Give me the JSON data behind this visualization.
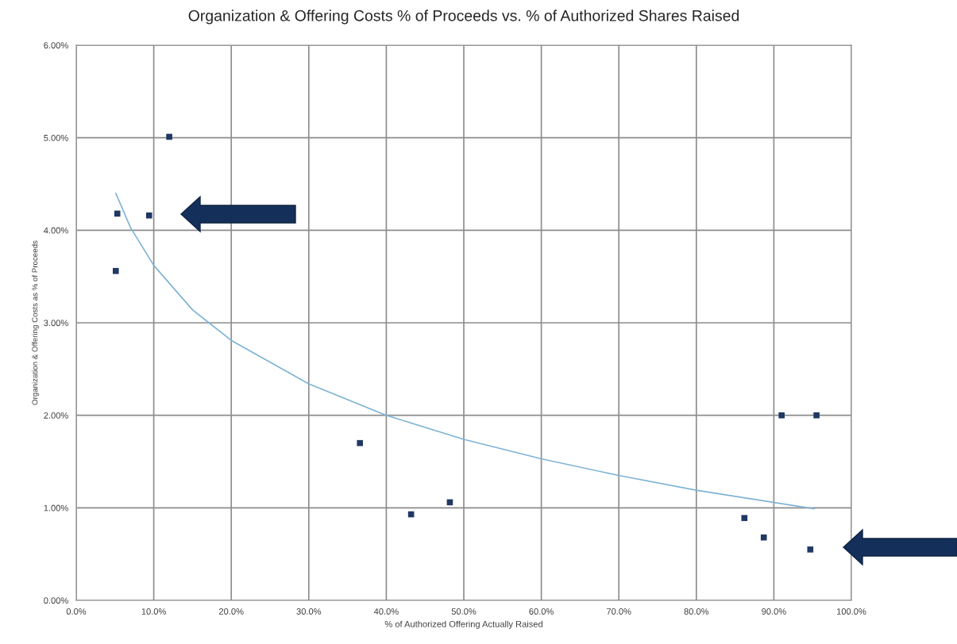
{
  "chart_data": {
    "type": "scatter",
    "title": "Organization & Offering Costs % of Proceeds vs. % of Authorized Shares Raised",
    "xlabel": "% of Authorized Offering Actually Raised",
    "ylabel": "Organization & Offering Costs as % of Proceeds",
    "series": [
      {
        "color": "#1f3864",
        "marker": "square",
        "x": [
          5.3,
          5.1,
          9.4,
          12.0,
          36.6,
          43.2,
          48.2,
          86.2,
          88.7,
          91.0,
          95.5,
          94.7
        ],
        "values": [
          4.18,
          3.56,
          4.16,
          5.01,
          1.7,
          0.93,
          1.06,
          0.89,
          0.68,
          2.0,
          2.0,
          0.55
        ]
      },
      {
        "type": "line",
        "color": "#7fb3d5",
        "line_style": "solid",
        "marker": "none",
        "x": [
          5.1,
          7,
          10,
          15,
          20,
          30,
          40,
          50,
          60,
          70,
          80,
          95.2
        ],
        "values": [
          4.4,
          4.03,
          3.62,
          3.14,
          2.81,
          2.34,
          2.0,
          1.74,
          1.53,
          1.35,
          1.19,
          0.99
        ]
      }
    ],
    "xlim": [
      0,
      100
    ],
    "xticks": [
      {
        "value": 0,
        "label": "0.0%"
      },
      {
        "value": 10,
        "label": "10.0%"
      },
      {
        "value": 20,
        "label": "20.0%"
      },
      {
        "value": 30,
        "label": "30.0%"
      },
      {
        "value": 40,
        "label": "40.0%"
      },
      {
        "value": 50,
        "label": "50.0%"
      },
      {
        "value": 60,
        "label": "60.0%"
      },
      {
        "value": 70,
        "label": "70.0%"
      },
      {
        "value": 80,
        "label": "80.0%"
      },
      {
        "value": 90,
        "label": "90.0%"
      },
      {
        "value": 100,
        "label": "100.0%"
      }
    ],
    "ylim": [
      0,
      6
    ],
    "yticks": [
      {
        "value": 0,
        "label": "0.00%"
      },
      {
        "value": 1,
        "label": "1.00%"
      },
      {
        "value": 2,
        "label": "2.00%"
      },
      {
        "value": 3,
        "label": "3.00%"
      },
      {
        "value": 4,
        "label": "4.00%"
      },
      {
        "value": 5,
        "label": "5.00%"
      },
      {
        "value": 6,
        "label": "6.00%"
      }
    ],
    "grid": true,
    "legend": false
  }
}
